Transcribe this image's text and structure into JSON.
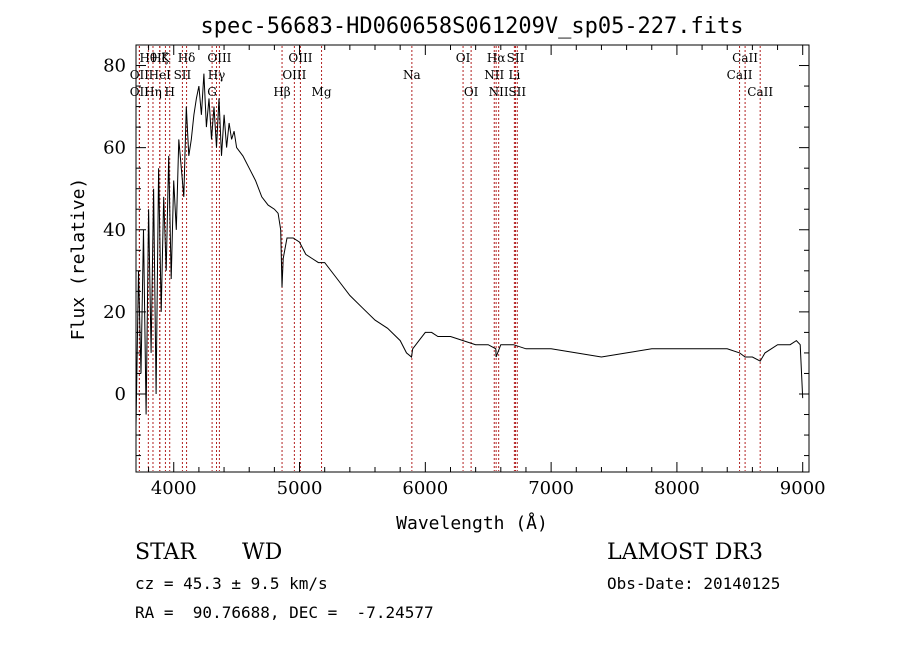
{
  "chart_data": {
    "type": "line",
    "title": "spec-56683-HD060658S061209V_sp05-227.fits",
    "xlabel": "Wavelength (Å)",
    "ylabel": "Flux (relative)",
    "xlim": [
      3700,
      9050
    ],
    "ylim": [
      -19,
      85
    ],
    "xticks": [
      4000,
      5000,
      6000,
      7000,
      8000,
      9000
    ],
    "yticks": [
      0,
      20,
      40,
      60,
      80
    ],
    "series": [
      {
        "name": "spectrum",
        "x": [
          3700,
          3720,
          3740,
          3760,
          3780,
          3800,
          3820,
          3840,
          3860,
          3880,
          3900,
          3920,
          3940,
          3960,
          3980,
          4000,
          4020,
          4040,
          4060,
          4080,
          4100,
          4120,
          4140,
          4160,
          4180,
          4200,
          4220,
          4240,
          4260,
          4280,
          4300,
          4320,
          4340,
          4360,
          4380,
          4400,
          4420,
          4440,
          4460,
          4480,
          4500,
          4550,
          4600,
          4650,
          4700,
          4750,
          4800,
          4830,
          4850,
          4861,
          4870,
          4900,
          4950,
          5000,
          5050,
          5100,
          5150,
          5200,
          5300,
          5400,
          5500,
          5600,
          5700,
          5800,
          5850,
          5890,
          5900,
          5950,
          6000,
          6050,
          6100,
          6200,
          6300,
          6400,
          6500,
          6560,
          6563,
          6600,
          6700,
          6800,
          7000,
          7200,
          7400,
          7600,
          7800,
          8000,
          8200,
          8400,
          8498,
          8542,
          8600,
          8662,
          8700,
          8800,
          8900,
          8950,
          8980,
          9000
        ],
        "y": [
          -8,
          30,
          5,
          40,
          -5,
          45,
          10,
          50,
          0,
          55,
          20,
          48,
          30,
          58,
          28,
          52,
          40,
          62,
          55,
          48,
          70,
          58,
          62,
          68,
          72,
          75,
          68,
          78,
          65,
          72,
          62,
          70,
          60,
          72,
          58,
          68,
          60,
          66,
          62,
          64,
          60,
          58,
          55,
          52,
          48,
          46,
          45,
          44,
          40,
          26,
          33,
          38,
          38,
          37,
          34,
          33,
          32,
          32,
          28,
          24,
          21,
          18,
          16,
          13,
          10,
          9,
          11,
          13,
          15,
          15,
          14,
          14,
          13,
          12,
          12,
          11,
          9,
          12,
          12,
          11,
          11,
          10,
          9,
          10,
          11,
          11,
          11,
          11,
          10,
          9,
          9,
          8,
          10,
          12,
          12,
          13,
          12,
          -1
        ]
      }
    ],
    "lines": [
      {
        "label": "Hθ",
        "x": 3798,
        "row": 1
      },
      {
        "label": "OII",
        "x": 3727,
        "row": 2
      },
      {
        "label": "OII",
        "x": 3727,
        "row": 3
      },
      {
        "label": "Hη",
        "x": 3835,
        "row": 3
      },
      {
        "label": "Hζ",
        "x": 3889,
        "row": 1
      },
      {
        "label": "HeI",
        "x": 3889,
        "row": 2
      },
      {
        "label": "K",
        "x": 3934,
        "row": 1
      },
      {
        "label": "SII",
        "x": 4069,
        "row": 2
      },
      {
        "label": "H",
        "x": 3968,
        "row": 3
      },
      {
        "label": "Hδ",
        "x": 4102,
        "row": 1
      },
      {
        "label": "OIII",
        "x": 4363,
        "row": 1
      },
      {
        "label": "Hγ",
        "x": 4340,
        "row": 2
      },
      {
        "label": "G",
        "x": 4305,
        "row": 3
      },
      {
        "label": "OIII",
        "x": 5007,
        "row": 1
      },
      {
        "label": "OIII",
        "x": 4959,
        "row": 2
      },
      {
        "label": "Hβ",
        "x": 4861,
        "row": 3
      },
      {
        "label": "Mg",
        "x": 5175,
        "row": 3
      },
      {
        "label": "Na",
        "x": 5893,
        "row": 2
      },
      {
        "label": "OI",
        "x": 6300,
        "row": 1
      },
      {
        "label": "OI",
        "x": 6364,
        "row": 3
      },
      {
        "label": "Hα",
        "x": 6563,
        "row": 1
      },
      {
        "label": "SII",
        "x": 6717,
        "row": 1
      },
      {
        "label": "NII",
        "x": 6548,
        "row": 2
      },
      {
        "label": "Li",
        "x": 6708,
        "row": 2
      },
      {
        "label": "NII",
        "x": 6583,
        "row": 3
      },
      {
        "label": "SII",
        "x": 6731,
        "row": 3
      },
      {
        "label": "CaII",
        "x": 8542,
        "row": 1
      },
      {
        "label": "CaII",
        "x": 8498,
        "row": 2
      },
      {
        "label": "CaII",
        "x": 8662,
        "row": 3
      }
    ],
    "line_color": "#b22222",
    "spectrum_color": "#000000"
  },
  "info": {
    "class_label": "STAR",
    "subclass_label": "WD",
    "survey": "LAMOST DR3",
    "cz": "cz = 45.3 ± 9.5 km/s",
    "obs_date": "Obs-Date: 20140125",
    "radec": "RA =  90.76688, DEC =  -7.24577"
  }
}
